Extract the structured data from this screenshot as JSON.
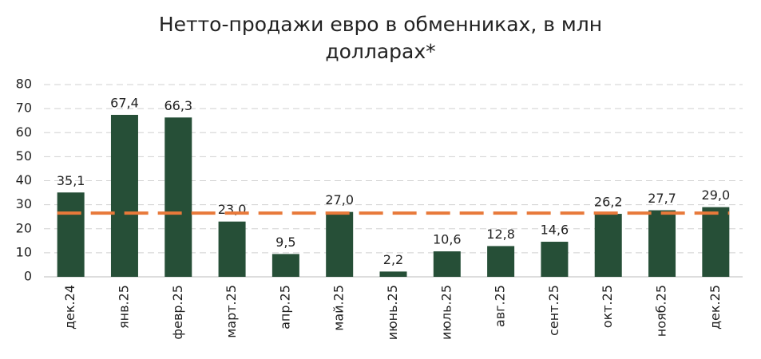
{
  "chart_data": {
    "type": "bar",
    "title": "Нетто-продажи евро в обменниках, в млн долларах*",
    "categories": [
      "дек.24",
      "янв.25",
      "февр.25",
      "март.25",
      "апр.25",
      "май.25",
      "июнь.25",
      "июль.25",
      "авг.25",
      "сент.25",
      "окт.25",
      "нояб.25",
      "дек.25"
    ],
    "values": [
      35.1,
      67.4,
      66.3,
      23.0,
      9.5,
      27.0,
      2.2,
      10.6,
      12.8,
      14.6,
      26.2,
      27.7,
      29.0
    ],
    "value_labels": [
      "35,1",
      "67,4",
      "66,3",
      "23,0",
      "9,5",
      "27,0",
      "2,2",
      "10,6",
      "12,8",
      "14,6",
      "26,2",
      "27,7",
      "29,0"
    ],
    "color": "#264f37",
    "reference_line": {
      "value": 26.5,
      "color": "#e8793a"
    },
    "ylim": [
      0,
      80
    ],
    "yticks": [
      0,
      10,
      20,
      30,
      40,
      50,
      60,
      70,
      80
    ],
    "grid": true
  }
}
